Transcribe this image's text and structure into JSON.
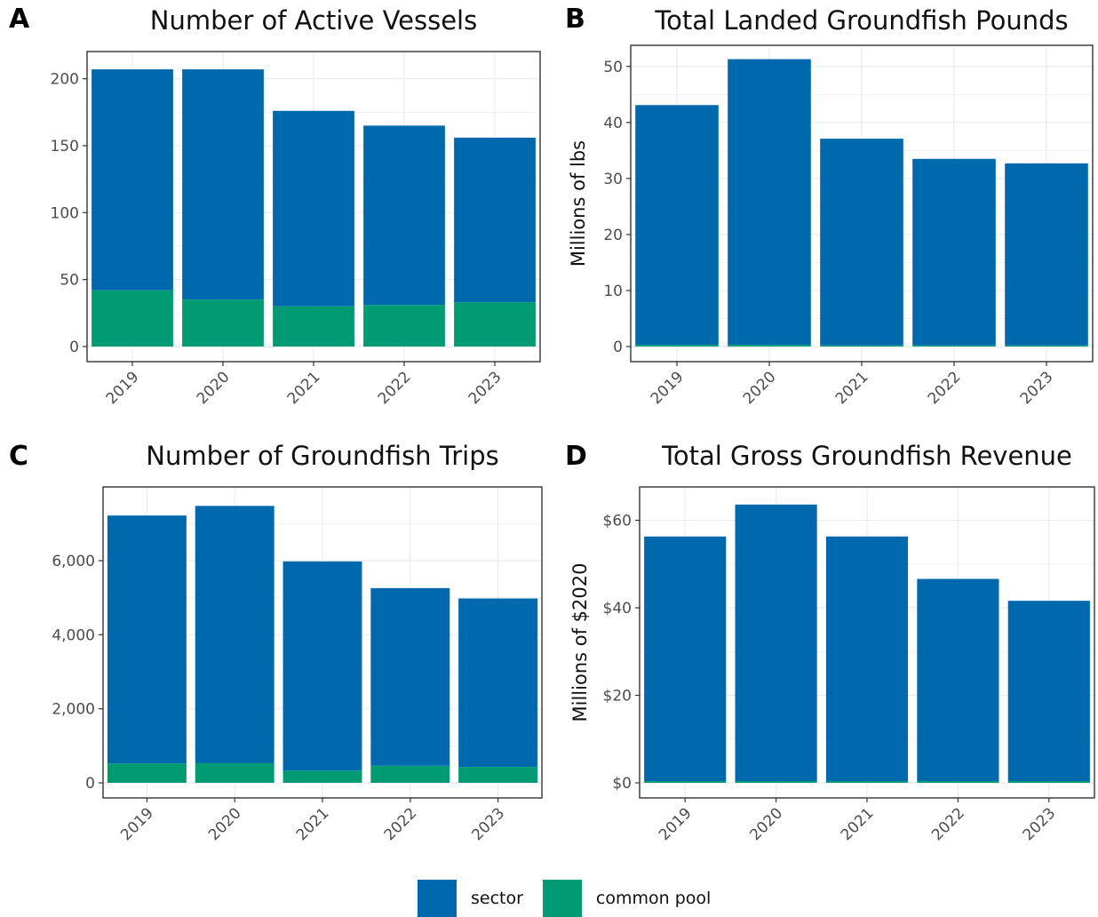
{
  "colors": {
    "sector": "#0069AD",
    "common_pool": "#009B72",
    "grid": "#ebebeb",
    "frame": "#333333"
  },
  "legend": {
    "sector": "sector",
    "common_pool": "common pool"
  },
  "chart_data": [
    {
      "panel": "A",
      "type": "bar",
      "stacked": true,
      "title": "Number of Active Vessels",
      "xlabel": "",
      "ylabel": "",
      "categories": [
        "2019",
        "2020",
        "2021",
        "2022",
        "2023"
      ],
      "series": [
        {
          "name": "sector",
          "values": [
            165,
            172,
            146,
            134,
            123
          ]
        },
        {
          "name": "common pool",
          "values": [
            42,
            35,
            30,
            31,
            33
          ]
        }
      ],
      "ylim": [
        0,
        215
      ],
      "yticks": [
        0,
        50,
        100,
        150,
        200
      ],
      "ytick_labels": [
        "0",
        "50",
        "100",
        "150",
        "200"
      ]
    },
    {
      "panel": "B",
      "type": "bar",
      "stacked": true,
      "title": "Total Landed Groundfish Pounds",
      "xlabel": "",
      "ylabel": "Millions of lbs",
      "categories": [
        "2019",
        "2020",
        "2021",
        "2022",
        "2023"
      ],
      "series": [
        {
          "name": "sector",
          "values": [
            42.8,
            51.0,
            36.9,
            33.3,
            32.5
          ]
        },
        {
          "name": "common pool",
          "values": [
            0.3,
            0.3,
            0.2,
            0.2,
            0.2
          ]
        }
      ],
      "ylim": [
        0,
        52.5
      ],
      "yticks": [
        0,
        10,
        20,
        30,
        40,
        50
      ],
      "ytick_labels": [
        "0",
        "10",
        "20",
        "30",
        "40",
        "50"
      ]
    },
    {
      "panel": "C",
      "type": "bar",
      "stacked": true,
      "title": "Number of Groundfish Trips",
      "xlabel": "",
      "ylabel": "",
      "categories": [
        "2019",
        "2020",
        "2021",
        "2022",
        "2023"
      ],
      "series": [
        {
          "name": "sector",
          "values": [
            6700,
            6950,
            5650,
            4800,
            4550
          ]
        },
        {
          "name": "common pool",
          "values": [
            520,
            530,
            330,
            460,
            430
          ]
        }
      ],
      "ylim": [
        0,
        7800
      ],
      "yticks": [
        0,
        2000,
        4000,
        6000
      ],
      "ytick_labels": [
        "0",
        "2,000",
        "4,000",
        "6,000"
      ]
    },
    {
      "panel": "D",
      "type": "bar",
      "stacked": true,
      "title": "Total Gross Groundfish Revenue",
      "xlabel": "",
      "ylabel": "Millions of $2020",
      "categories": [
        "2019",
        "2020",
        "2021",
        "2022",
        "2023"
      ],
      "series": [
        {
          "name": "sector",
          "values": [
            55.9,
            63.2,
            55.9,
            46.2,
            41.2
          ]
        },
        {
          "name": "common pool",
          "values": [
            0.4,
            0.4,
            0.4,
            0.4,
            0.4
          ]
        }
      ],
      "ylim": [
        0,
        66
      ],
      "yticks": [
        0,
        20,
        40,
        60
      ],
      "ytick_labels": [
        "$0",
        "$20",
        "$40",
        "$60"
      ]
    }
  ]
}
